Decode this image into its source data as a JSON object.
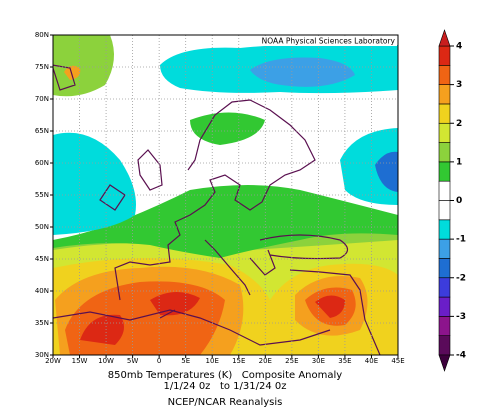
{
  "map": {
    "credit_box": "NOAA Physical Sciences Laboratory",
    "title": "850mb Temperatures (K)   Composite Anomaly",
    "subtitle": "1/1/24 0z   to 1/31/24 0z",
    "source": "NCEP/NCAR Reanalysis",
    "xlim": [
      -20,
      45
    ],
    "ylim": [
      30,
      80
    ],
    "xticks": [
      {
        "value": -20,
        "label": "20W"
      },
      {
        "value": -15,
        "label": "15W"
      },
      {
        "value": -10,
        "label": "10W"
      },
      {
        "value": -5,
        "label": "5W"
      },
      0,
      {
        "value": 5,
        "label": "5E"
      },
      {
        "value": 10,
        "label": "10E"
      },
      {
        "value": 15,
        "label": "15E"
      },
      {
        "value": 20,
        "label": "20E"
      },
      {
        "value": 25,
        "label": "25E"
      },
      {
        "value": 30,
        "label": "30E"
      },
      {
        "value": 35,
        "label": "35E"
      },
      {
        "value": 40,
        "label": "40E"
      },
      {
        "value": 45,
        "label": "45E"
      }
    ],
    "yticks": [
      {
        "value": 30,
        "label": "30N"
      },
      {
        "value": 35,
        "label": "35N"
      },
      {
        "value": 40,
        "label": "40N"
      },
      {
        "value": 45,
        "label": "45N"
      },
      {
        "value": 50,
        "label": "50N"
      },
      {
        "value": 55,
        "label": "55N"
      },
      {
        "value": 60,
        "label": "60N"
      },
      {
        "value": 65,
        "label": "65N"
      },
      {
        "value": 70,
        "label": "70N"
      },
      {
        "value": 75,
        "label": "75N"
      },
      {
        "value": 80,
        "label": "80N"
      }
    ],
    "grid": true,
    "colorbar": {
      "levels": [
        -4,
        -3.5,
        -3,
        -2.5,
        -2,
        -1.5,
        -1,
        -0.5,
        0,
        0.5,
        1,
        1.5,
        2,
        2.5,
        3,
        3.5,
        4
      ],
      "colors": [
        "#5a0a5a",
        "#8c148c",
        "#6a1ec8",
        "#3c3cdc",
        "#1e6ed2",
        "#3ca0e6",
        "#00dcdc",
        "#ffffff",
        "#ffffff",
        "#32c832",
        "#8cd23c",
        "#d2e632",
        "#f0d21e",
        "#f5a01e",
        "#f06414",
        "#dc2814"
      ],
      "ticks": [
        -4,
        -3,
        -2,
        -1,
        0,
        1,
        2,
        3,
        4
      ],
      "low_color": "#3c003c",
      "high_color": "#c81e1e"
    }
  }
}
